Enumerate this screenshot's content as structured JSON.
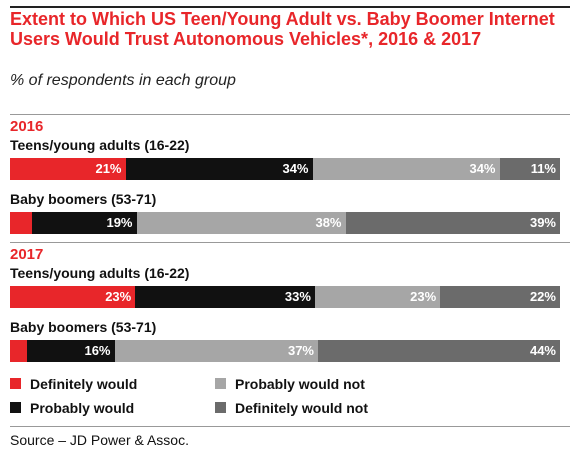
{
  "chart_data": {
    "type": "bar",
    "orientation": "horizontal-stacked-100",
    "title": "Extent to Which US Teen/Young Adult vs. Baby Boomer Internet Users Would Trust Autonomous Vehicles*, 2016 & 2017",
    "subtitle": "% of respondents in each group",
    "categories_legend": [
      "Definitely would",
      "Probably would",
      "Probably not",
      "Definitely would not"
    ],
    "colors": [
      "#e8262a",
      "#111111",
      "#a6a6a6",
      "#6b6b6b"
    ],
    "legend_placement": "bottom",
    "groups": [
      {
        "year": "2016",
        "rows": [
          {
            "label": "Teens/young adults (16-22)",
            "values": [
              21,
              34,
              34,
              11
            ],
            "value_labels": [
              "21%",
              "34%",
              "34%",
              "11%"
            ]
          },
          {
            "label": "Baby boomers (53-71)",
            "values": [
              4,
              19,
              38,
              39
            ],
            "value_labels": [
              "4%",
              "19%",
              "38%",
              "39%"
            ]
          }
        ]
      },
      {
        "year": "2017",
        "rows": [
          {
            "label": "Teens/young adults (16-22)",
            "values": [
              23,
              33,
              23,
              22
            ],
            "value_labels": [
              "23%",
              "33%",
              "23%",
              "22%"
            ]
          },
          {
            "label": "Baby boomers (53-71)",
            "values": [
              3,
              16,
              37,
              44
            ],
            "value_labels": [
              "3%",
              "16%",
              "37%",
              "44%"
            ]
          }
        ]
      }
    ]
  },
  "legend": {
    "items": [
      {
        "label": "Definitely would",
        "color": "#e8262a"
      },
      {
        "label": "Probably would",
        "color": "#111111"
      },
      {
        "label": "Probably would not",
        "color": "#a6a6a6"
      },
      {
        "label": "Definitely would not",
        "color": "#6b6b6b"
      }
    ]
  },
  "source": "Source – JD Power & Assoc."
}
